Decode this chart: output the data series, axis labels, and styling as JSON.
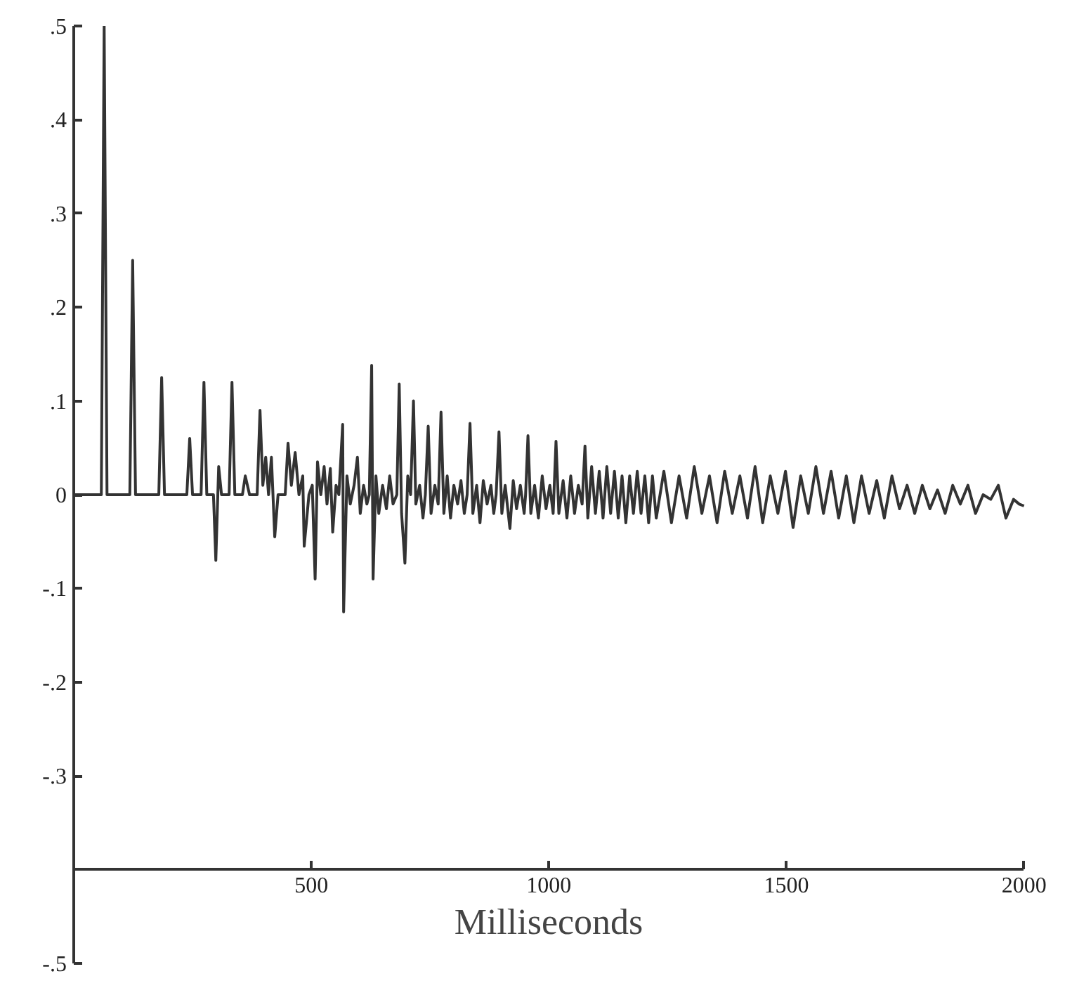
{
  "chart_data": {
    "type": "line",
    "xlabel": "Milliseconds",
    "xlim": [
      0,
      2000
    ],
    "ylim": [
      -0.5,
      0.5
    ],
    "xticks": [
      500,
      1000,
      1500,
      2000
    ],
    "yticks": [
      {
        "value": 0.5,
        "label": ".5"
      },
      {
        "value": 0.4,
        "label": ".4"
      },
      {
        "value": 0.3,
        "label": ".3"
      },
      {
        "value": 0.2,
        "label": ".2"
      },
      {
        "value": 0.1,
        "label": ".1"
      },
      0,
      {
        "value": -0.1,
        "label": "-.1"
      },
      {
        "value": -0.2,
        "label": "-.2"
      },
      {
        "value": -0.3,
        "label": "-.3"
      },
      {
        "value": -0.4,
        "label": null
      },
      {
        "value": -0.5,
        "label": "-.5"
      }
    ],
    "grid": false,
    "series": [
      {
        "color": "#333333",
        "x": [
          0,
          58,
          64,
          70,
          118,
          124,
          130,
          179,
          185,
          191,
          238,
          244,
          250,
          268,
          274,
          280,
          294,
          299,
          305,
          311,
          327,
          333,
          339,
          355,
          361,
          370,
          386,
          392,
          398,
          404,
          410,
          416,
          423,
          430,
          445,
          451,
          458,
          466,
          474,
          482,
          485,
          495,
          502,
          508,
          513,
          520,
          527,
          533,
          540,
          545,
          552,
          558,
          566,
          568,
          575,
          582,
          590,
          597,
          603,
          610,
          617,
          622,
          627,
          630,
          636,
          642,
          650,
          658,
          665,
          672,
          680,
          685,
          690,
          697,
          703,
          709,
          715,
          720,
          728,
          735,
          740,
          746,
          752,
          760,
          767,
          773,
          779,
          786,
          793,
          800,
          808,
          815,
          822,
          828,
          834,
          840,
          848,
          855,
          862,
          870,
          878,
          884,
          889,
          895,
          901,
          908,
          918,
          925,
          932,
          940,
          948,
          951,
          956,
          962,
          970,
          978,
          986,
          994,
          1002,
          1009,
          1015,
          1021,
          1030,
          1038,
          1046,
          1054,
          1062,
          1070,
          1076,
          1082,
          1090,
          1098,
          1106,
          1114,
          1122,
          1130,
          1138,
          1146,
          1154,
          1162,
          1170,
          1178,
          1186,
          1194,
          1202,
          1210,
          1218,
          1226,
          1242,
          1258,
          1274,
          1290,
          1306,
          1322,
          1338,
          1354,
          1370,
          1386,
          1402,
          1418,
          1434,
          1450,
          1466,
          1482,
          1498,
          1514,
          1530,
          1546,
          1562,
          1578,
          1594,
          1610,
          1626,
          1642,
          1658,
          1674,
          1690,
          1706,
          1722,
          1738,
          1754,
          1770,
          1786,
          1802,
          1818,
          1834,
          1850,
          1866,
          1882,
          1898,
          1914,
          1930,
          1946,
          1962,
          1978,
          1990,
          2000
        ],
        "values": [
          0,
          0,
          0.5,
          0,
          0,
          0.25,
          0,
          0,
          0.125,
          0,
          0,
          0.06,
          0,
          0,
          0.12,
          0,
          0,
          -0.07,
          0.03,
          0,
          0,
          0.12,
          0,
          0,
          0.02,
          0,
          0,
          0.09,
          0.01,
          0.04,
          0,
          0.04,
          -0.045,
          0,
          0,
          0.055,
          0.01,
          0.045,
          0,
          0.02,
          -0.055,
          0,
          0.01,
          -0.09,
          0.035,
          0,
          0.03,
          -0.01,
          0.028,
          -0.04,
          0.01,
          0,
          0.075,
          -0.125,
          0.02,
          -0.01,
          0.01,
          0.04,
          -0.02,
          0.01,
          -0.01,
          0,
          0.138,
          -0.09,
          0.02,
          -0.02,
          0.01,
          -0.015,
          0.02,
          -0.01,
          0,
          0.118,
          -0.02,
          -0.073,
          0.02,
          0,
          0.1,
          -0.01,
          0.01,
          -0.025,
          0,
          0.073,
          -0.02,
          0.01,
          -0.01,
          0.088,
          -0.02,
          0.02,
          -0.025,
          0.01,
          -0.01,
          0.015,
          -0.02,
          0,
          0.076,
          -0.02,
          0.01,
          -0.03,
          0.015,
          -0.01,
          0.01,
          -0.02,
          0,
          0.067,
          -0.02,
          0.01,
          -0.036,
          0.015,
          -0.015,
          0.01,
          -0.02,
          0,
          0.063,
          -0.02,
          0.01,
          -0.025,
          0.02,
          -0.015,
          0.01,
          -0.02,
          0.057,
          -0.02,
          0.015,
          -0.025,
          0.02,
          -0.02,
          0.01,
          -0.01,
          0.052,
          -0.025,
          0.03,
          -0.02,
          0.025,
          -0.025,
          0.03,
          -0.02,
          0.025,
          -0.025,
          0.02,
          -0.03,
          0.02,
          -0.02,
          0.025,
          -0.02,
          0.02,
          -0.03,
          0.02,
          -0.025,
          0.025,
          -0.03,
          0.02,
          -0.025,
          0.03,
          -0.02,
          0.02,
          -0.03,
          0.025,
          -0.02,
          0.02,
          -0.025,
          0.03,
          -0.03,
          0.02,
          -0.02,
          0.025,
          -0.035,
          0.02,
          -0.02,
          0.03,
          -0.02,
          0.025,
          -0.025,
          0.02,
          -0.03,
          0.02,
          -0.02,
          0.015,
          -0.025,
          0.02,
          -0.015,
          0.01,
          -0.02,
          0.01,
          -0.015,
          0.005,
          -0.02,
          0.01,
          -0.01,
          0.01,
          -0.02,
          0,
          -0.005,
          0.01,
          -0.025,
          -0.005,
          -0.01,
          -0.012
        ]
      }
    ]
  }
}
